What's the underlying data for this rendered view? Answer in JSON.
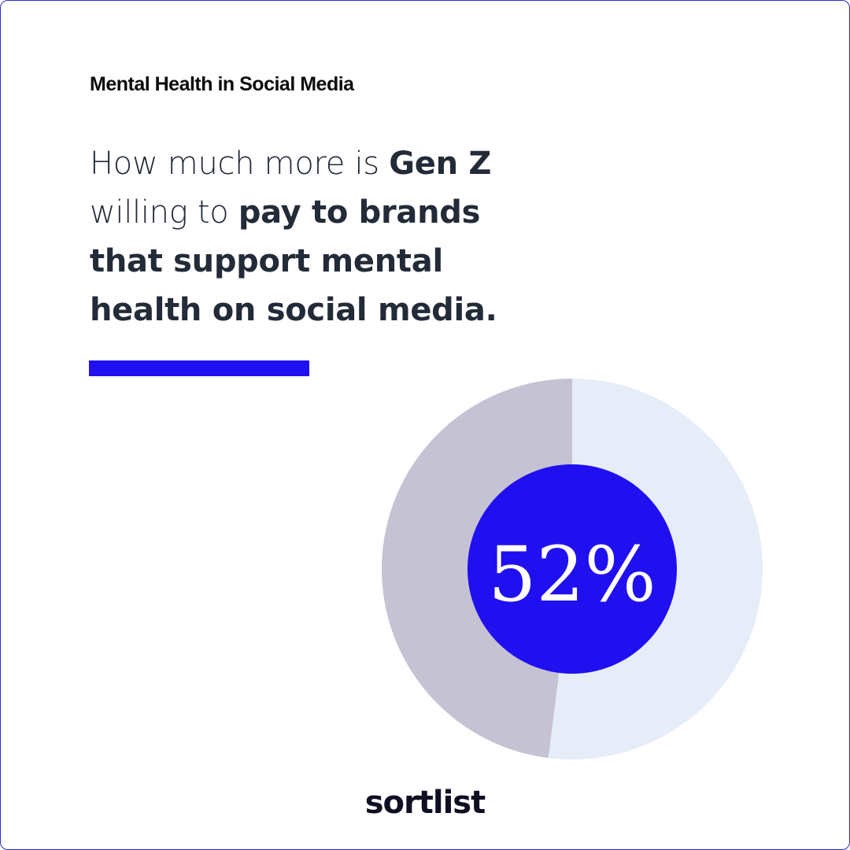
{
  "kicker": "Mental Health in Social Media",
  "headline": {
    "lines": [
      [
        {
          "text": "How much more is ",
          "bold": false
        },
        {
          "text": "Gen Z",
          "bold": true
        }
      ],
      [
        {
          "text": "willing to ",
          "bold": false
        },
        {
          "text": "pay to brands",
          "bold": true
        }
      ],
      [
        {
          "text": "that support mental",
          "bold": true
        }
      ],
      [
        {
          "text": "health on social media.",
          "bold": true
        }
      ]
    ]
  },
  "colors": {
    "accent": "#2010F0",
    "slice_value": "#E6ECF8",
    "slice_rest": "#C5C2D3",
    "text": "#232B38"
  },
  "chart_data": {
    "type": "pie",
    "style": "donut",
    "values": [
      52,
      48
    ],
    "center_label": "52%",
    "start": "top, clockwise"
  },
  "logo": "sortlist"
}
